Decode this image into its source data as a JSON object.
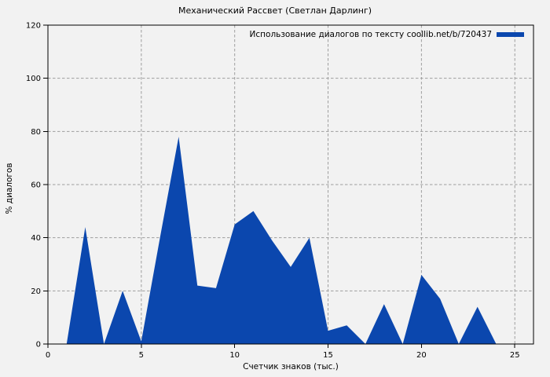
{
  "figure": {
    "background": "#f2f2f2"
  },
  "chart_data": {
    "type": "area",
    "title": "Механический Рассвет (Светлан Дарлинг)",
    "xlabel": "Счетчик знаков (тыс.)",
    "ylabel": "% диалогов",
    "legend": [
      {
        "label": "Использование диалогов по тексту coollib.net/b/720437",
        "color": "#0b47ae"
      }
    ],
    "legend_position": "top-right-inside",
    "series": [
      {
        "name": "Использование диалогов по тексту coollib.net/b/720437",
        "x": [
          1,
          2,
          3,
          4,
          5,
          6,
          7,
          8,
          9,
          10,
          11,
          12,
          13,
          14,
          15,
          16,
          17,
          18,
          19,
          20,
          21,
          22,
          23,
          24
        ],
        "y": [
          0,
          44,
          0,
          20,
          1,
          40,
          78,
          22,
          21,
          45,
          50,
          39,
          29,
          40,
          5,
          7,
          0,
          15,
          0,
          26,
          17,
          0,
          14,
          0
        ]
      }
    ],
    "xlim": [
      0,
      26
    ],
    "ylim": [
      0,
      120
    ],
    "xticks": [
      0,
      5,
      10,
      15,
      20,
      25
    ],
    "yticks": [
      0,
      20,
      40,
      60,
      80,
      100,
      120
    ],
    "grid": true,
    "grid_style": "dashed",
    "colors": {
      "fill": "#0b47ae",
      "grid": "#9e9e9e",
      "axis": "#000000",
      "text": "#000000",
      "background": "#f2f2f2"
    }
  }
}
